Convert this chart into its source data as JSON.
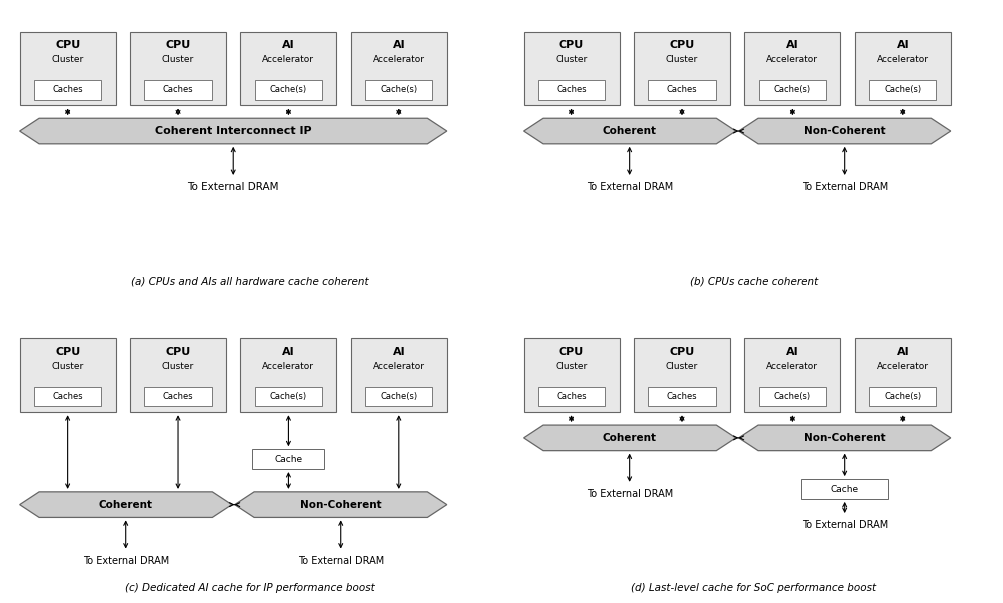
{
  "bg_color": "#ffffff",
  "box_fill": "#e8e8e8",
  "box_edge": "#666666",
  "banner_fill": "#cccccc",
  "banner_edge": "#666666",
  "white_fill": "#ffffff",
  "captions": [
    "(a) CPUs and AIs all hardware cache coherent",
    "(b) CPUs cache coherent",
    "(c) Dedicated AI cache for IP performance boost",
    "(d) Last-level cache for SoC performance boost"
  ],
  "labels_top1": [
    "CPU",
    "CPU",
    "AI",
    "AI"
  ],
  "labels_top2": [
    "Cluster",
    "Cluster",
    "Accelerator",
    "Accelerator"
  ],
  "labels_sub": [
    "Caches",
    "Caches",
    "Cache(s)",
    "Cache(s)"
  ]
}
